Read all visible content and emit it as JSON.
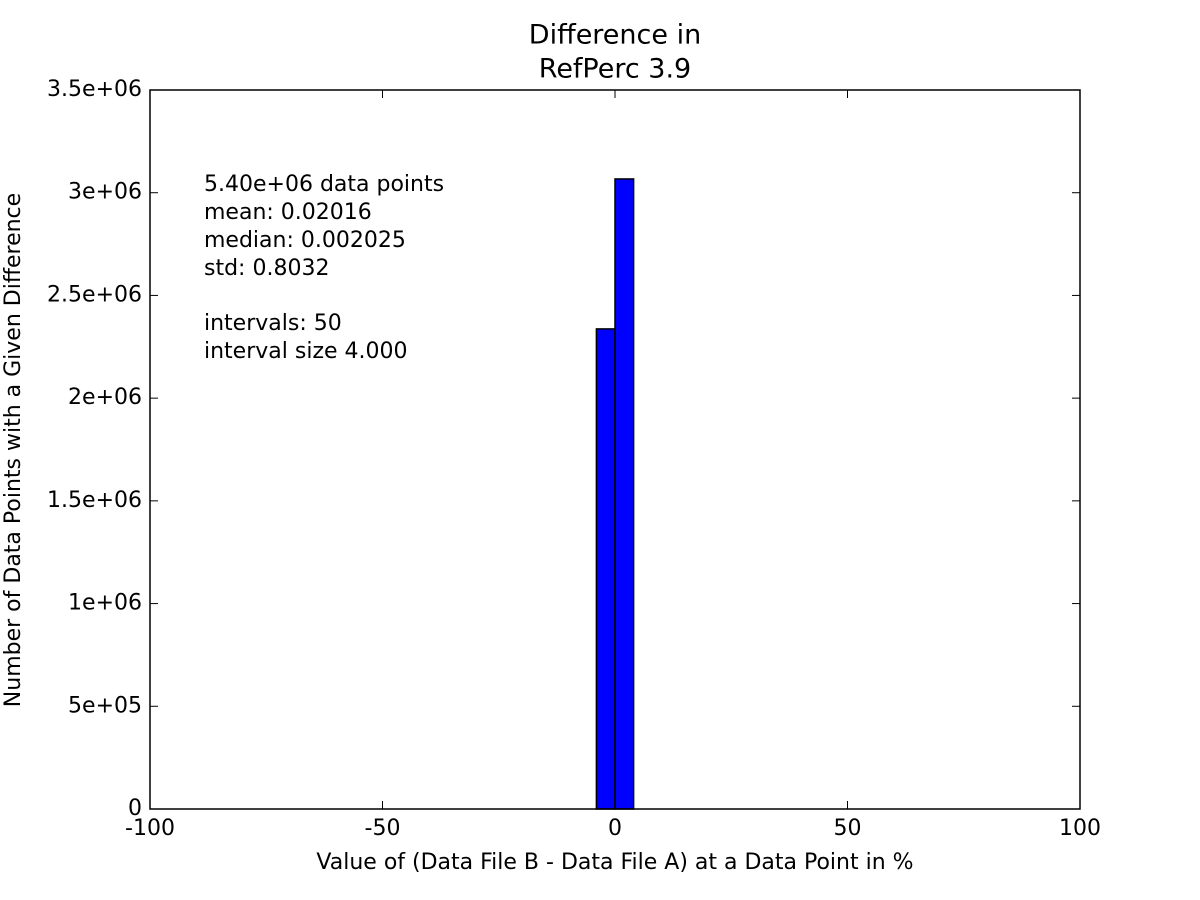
{
  "chart_data": {
    "type": "histogram",
    "title": [
      "Difference in",
      "RefPerc 3.9"
    ],
    "xlabel": "Value of (Data File B - Data File A) at a Data Point in %",
    "ylabel": "Number of Data Points with a Given Difference",
    "annotations": [
      [
        "5.40e+06 data points",
        "mean: 0.02016",
        "median: 0.002025",
        "std: 0.8032"
      ],
      [
        "intervals: 50",
        "interval size 4.000"
      ]
    ],
    "bins": [
      -100,
      -96,
      -92,
      -88,
      -84,
      -80,
      -76,
      -72,
      -68,
      -64,
      -60,
      -56,
      -52,
      -48,
      -44,
      -40,
      -36,
      -32,
      -28,
      -24,
      -20,
      -16,
      -12,
      -8,
      -4,
      0,
      4,
      8,
      12,
      16,
      20,
      24,
      28,
      32,
      36,
      40,
      44,
      48,
      52,
      56,
      60,
      64,
      68,
      72,
      76,
      80,
      84,
      88,
      92,
      96,
      100
    ],
    "counts": [
      0,
      0,
      0,
      0,
      0,
      0,
      0,
      0,
      0,
      0,
      0,
      0,
      0,
      0,
      0,
      0,
      0,
      0,
      0,
      0,
      0,
      0,
      0,
      0,
      2337000,
      3067000,
      0,
      0,
      0,
      0,
      0,
      0,
      0,
      0,
      0,
      0,
      0,
      0,
      0,
      0,
      0,
      0,
      0,
      0,
      0,
      0,
      0,
      0,
      0,
      0
    ],
    "color": "#0000ff",
    "xlim": [
      -100,
      100
    ],
    "xticks": [
      -100,
      -50,
      0,
      50,
      100
    ],
    "ylim": [
      0,
      3500000
    ],
    "yticks": [
      0,
      {
        "value": 500000,
        "label": "5e+05"
      },
      {
        "value": 1000000,
        "label": "1e+06"
      },
      {
        "value": 1500000,
        "label": "1.5e+06"
      },
      {
        "value": 2000000,
        "label": "2e+06"
      },
      {
        "value": 2500000,
        "label": "2.5e+06"
      },
      {
        "value": 3000000,
        "label": "3e+06"
      },
      {
        "value": 3500000,
        "label": "3.5e+06"
      }
    ],
    "grid": false
  }
}
